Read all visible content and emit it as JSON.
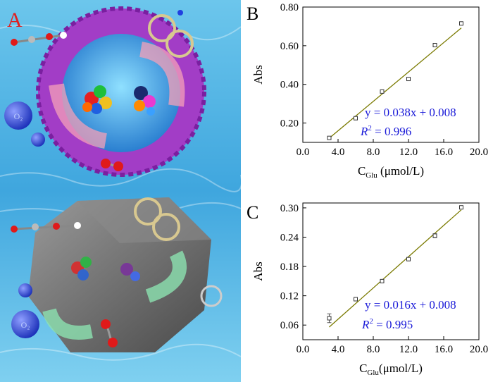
{
  "panel_a": {
    "label": "A",
    "o2_label": "O₂"
  },
  "chart_data": [
    {
      "type": "scatter",
      "panel_label": "B",
      "xlabel_main": "C",
      "xlabel_sub": "Glu",
      "xlabel_unit": " (μmol/L)",
      "ylabel": "Abs",
      "xlim": [
        0,
        20
      ],
      "ylim": [
        0.1,
        0.8
      ],
      "xticks": [
        0,
        4,
        8,
        12,
        16,
        20
      ],
      "xtick_labels": [
        "0.0",
        "4.0",
        "8.0",
        "12.0",
        "16.0",
        "20.0"
      ],
      "yticks": [
        0.2,
        0.4,
        0.6,
        0.8
      ],
      "ytick_labels": [
        "0.20",
        "0.40",
        "0.60",
        "0.80"
      ],
      "x": [
        3,
        6,
        9,
        12,
        15,
        18
      ],
      "y": [
        0.123,
        0.225,
        0.363,
        0.428,
        0.603,
        0.715
      ],
      "fit": {
        "slope": 0.038,
        "intercept": 0.008,
        "x_range": [
          3,
          18
        ],
        "color": "#7a7a00"
      },
      "equation": "y = 0.038x + 0.008",
      "r2_label": "R",
      "r2_value": " = 0.996",
      "annotation_color": "#1a1ad8",
      "grid": false
    },
    {
      "type": "scatter",
      "panel_label": "C",
      "xlabel_main": "C",
      "xlabel_sub": "Glu",
      "xlabel_unit": "(μmol/L)",
      "ylabel": "Abs",
      "xlim": [
        0,
        20
      ],
      "ylim": [
        0.03,
        0.31
      ],
      "xticks": [
        0,
        4,
        8,
        12,
        16,
        20
      ],
      "xtick_labels": [
        "0.0",
        "4.0",
        "8.0",
        "12.0",
        "16.0",
        "20.0"
      ],
      "yticks": [
        0.06,
        0.12,
        0.18,
        0.24,
        0.3
      ],
      "ytick_labels": [
        "0.06",
        "0.12",
        "0.18",
        "0.24",
        "0.30"
      ],
      "x": [
        3,
        6,
        9,
        12,
        15,
        18
      ],
      "y": [
        0.074,
        0.113,
        0.15,
        0.195,
        0.243,
        0.301
      ],
      "errors": [
        0.009,
        0.002,
        0.002,
        0.003,
        0.004,
        0.002
      ],
      "fit": {
        "slope": 0.016,
        "intercept": 0.008,
        "x_range": [
          3,
          18
        ],
        "color": "#7a7a00"
      },
      "equation": "y = 0.016x + 0.008",
      "r2_label": "R",
      "r2_value": " = 0.995",
      "annotation_color": "#1a1ad8",
      "grid": false
    }
  ]
}
